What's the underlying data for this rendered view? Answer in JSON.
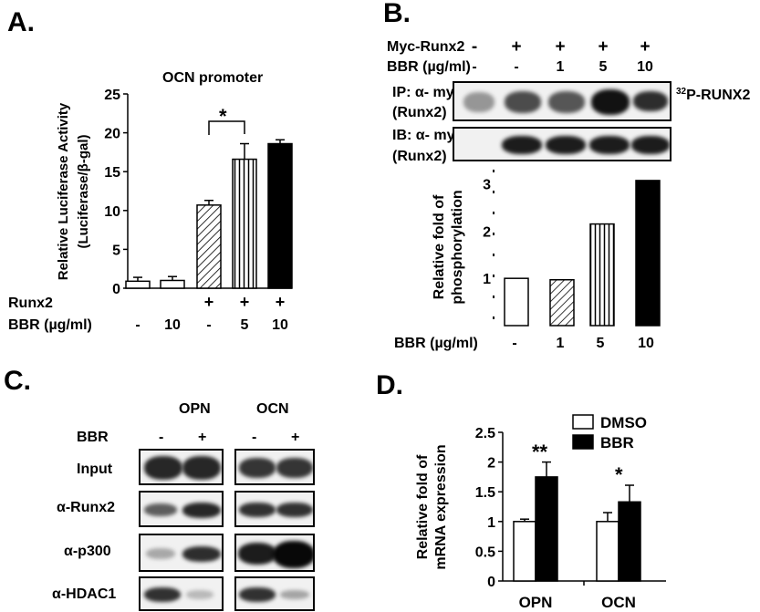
{
  "panel_letters": {
    "a": "A.",
    "b": "B.",
    "c": "C.",
    "d": "D."
  },
  "panel_a": {
    "title": "OCN promoter",
    "ylabel_line1": "Relative Luciferase Activity",
    "ylabel_line2": "(Luciferase/β-gal)",
    "significance": "*",
    "row_labels": [
      "Runx2",
      "BBR (µg/ml)"
    ],
    "runx2_marks": [
      "",
      "",
      "+",
      "+",
      "+"
    ],
    "bbr_marks": [
      "-",
      "10",
      "-",
      "5",
      "10"
    ]
  },
  "panel_b": {
    "rows": [
      {
        "label": "Myc-Runx2",
        "marks": [
          "-",
          "+",
          "+",
          "+",
          "+"
        ]
      },
      {
        "label": "BBR (µg/ml)",
        "marks": [
          "-",
          "-",
          "1",
          "5",
          "10"
        ]
      }
    ],
    "ip_label_line1": "IP: α- myc",
    "ip_label_line2": "(Runx2)",
    "ib_label_line1": "IB: α- myc",
    "ib_label_line2": "(Runx2)",
    "p32_sup": "32",
    "p32_text": "P-RUNX2",
    "ylabel_line1": "Relative fold of",
    "ylabel_line2": "phosphorylation",
    "xrow_label": "BBR (µg/ml)",
    "xmarks": [
      "-",
      "1",
      "5",
      "10"
    ]
  },
  "panel_c": {
    "group_left": "OPN",
    "group_right": "OCN",
    "bbr_label": "BBR",
    "marks": [
      "-",
      "+",
      "-",
      "+"
    ],
    "rows": [
      "Input",
      "α-Runx2",
      "α-p300",
      "α-HDAC1"
    ]
  },
  "panel_d": {
    "ylabel_line1": "Relative fold of",
    "ylabel_line2": "mRNA expression",
    "sig_opn": "**",
    "sig_ocn": "*"
  },
  "chart_data": [
    {
      "type": "bar",
      "title": "OCN promoter",
      "ylabel": "Relative Luciferase Activity (Luciferase/β-gal)",
      "categories": [
        "- / -",
        "- / 10",
        "+ / -",
        "+ / 5",
        "+ / 10"
      ],
      "values": [
        0.9,
        1.0,
        10.7,
        16.6,
        18.6
      ],
      "errors": [
        0.5,
        0.5,
        0.6,
        2.0,
        0.5
      ],
      "fills": [
        "white",
        "white",
        "hatch",
        "vlines",
        "black"
      ],
      "yticks": [
        0,
        5,
        10,
        15,
        20,
        25
      ],
      "ylim": [
        0,
        25
      ],
      "grid": false
    },
    {
      "type": "bar",
      "ylabel": "Relative fold of phosphorylation",
      "categories": [
        "-",
        "1",
        "5",
        "10"
      ],
      "values": [
        1.0,
        0.97,
        2.15,
        3.07
      ],
      "fills": [
        "white",
        "hatch",
        "vlines",
        "black"
      ],
      "yticks": [
        1,
        2,
        3
      ],
      "ylim": [
        0,
        3.3
      ],
      "grid": false
    },
    {
      "type": "bar",
      "ylabel": "Relative fold of mRNA expression",
      "categories": [
        "OPN",
        "OCN"
      ],
      "series": [
        {
          "name": "DMSO",
          "values": [
            1.0,
            1.0
          ],
          "errors": [
            0.04,
            0.15
          ],
          "color": "#ffffff"
        },
        {
          "name": "BBR",
          "values": [
            1.75,
            1.33
          ],
          "errors": [
            0.25,
            0.28
          ],
          "color": "#000000"
        }
      ],
      "yticks": [
        0,
        0.5,
        1,
        1.5,
        2,
        2.5
      ],
      "ylim": [
        0,
        2.5
      ],
      "legend": "top-right",
      "grid": false
    }
  ]
}
